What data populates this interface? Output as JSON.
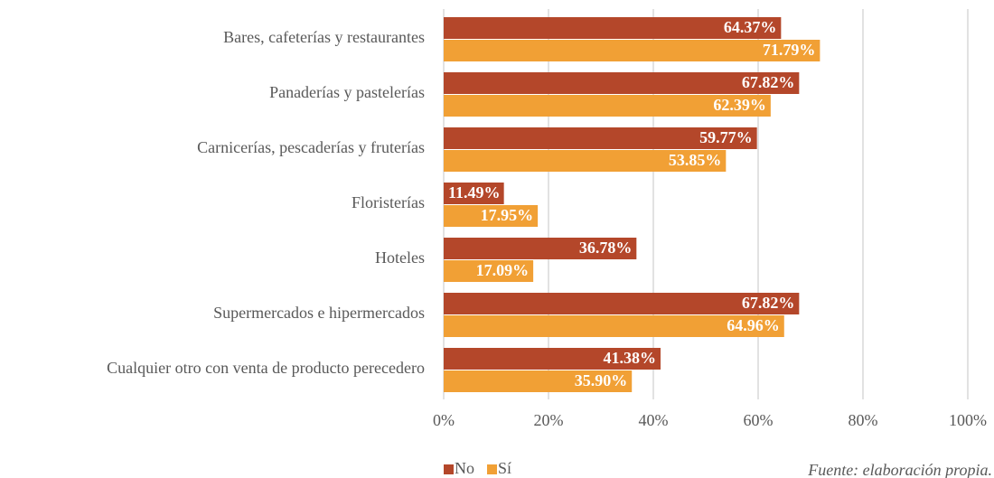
{
  "chart_data": {
    "type": "barh",
    "categories": [
      "Bares, cafeterías y restaurantes",
      "Panaderías y pastelerías",
      "Carnicerías, pescaderías y fruterías",
      "Floristerías",
      "Hoteles",
      "Supermercados e hipermercados",
      "Cualquier otro con venta de producto perecedero"
    ],
    "series": [
      {
        "name": "No",
        "color": "#b4472a",
        "values": [
          64.37,
          67.82,
          59.77,
          11.49,
          36.78,
          67.82,
          41.38
        ],
        "value_labels": [
          "64.37%",
          "67.82%",
          "59.77%",
          "11.49%",
          "36.78%",
          "67.82%",
          "41.38%"
        ]
      },
      {
        "name": "Sí",
        "color": "#f1a035",
        "values": [
          71.79,
          62.39,
          53.85,
          17.95,
          17.09,
          64.96,
          35.9
        ],
        "value_labels": [
          "71.79%",
          "62.39%",
          "53.85%",
          "17.95%",
          "17.09%",
          "64.96%",
          "35.90%"
        ]
      }
    ],
    "xlim": [
      0,
      100
    ],
    "xticks": [
      {
        "value": 0,
        "label": "0%"
      },
      {
        "value": 20,
        "label": "20%"
      },
      {
        "value": 40,
        "label": "40%"
      },
      {
        "value": 60,
        "label": "60%"
      },
      {
        "value": 80,
        "label": "80%"
      },
      {
        "value": 100,
        "label": "100%"
      }
    ],
    "grid": true,
    "legend": "bottom",
    "source": "Fuente: elaboración propia."
  }
}
